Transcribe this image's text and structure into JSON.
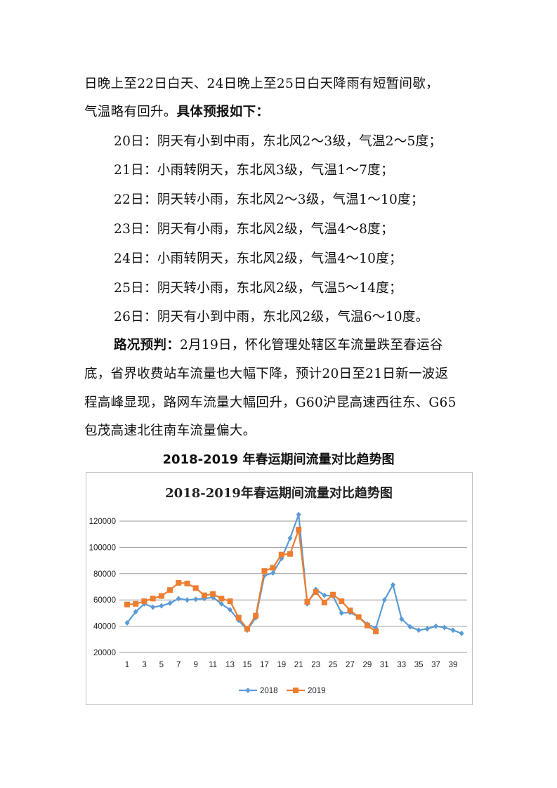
{
  "paragraphs": [
    {
      "parts": [
        {
          "t": "日晚上至22日白天、24日晚上至25日白天降雨有短暂间歇，"
        }
      ]
    },
    {
      "parts": [
        {
          "t": "气温略有回升。"
        },
        {
          "t": "具体预报如下：",
          "bold": true
        }
      ]
    },
    {
      "parts": [
        {
          "t": "20日：阴天有小到中雨，东北风2～3级，气温2～5度；"
        }
      ]
    },
    {
      "parts": [
        {
          "t": "21日：小雨转阴天，东北风3级，气温1～7度；"
        }
      ]
    },
    {
      "parts": [
        {
          "t": "22日：阴天转小雨，东北风2～3级，气温1～10度；"
        }
      ]
    },
    {
      "parts": [
        {
          "t": "23日：阴天有小雨，东北风2级，气温4～8度；"
        }
      ]
    },
    {
      "parts": [
        {
          "t": "24日：小雨转阴天，东北风2级，气温4～10度；"
        }
      ]
    },
    {
      "parts": [
        {
          "t": "25日：阴天转小雨，东北风2级，气温5～14度；"
        }
      ]
    },
    {
      "parts": [
        {
          "t": "26日：阴天有小到中雨，东北风2级，气温6～10度。"
        }
      ]
    },
    {
      "parts": [
        {
          "t": "路况预判：",
          "bold": true
        },
        {
          "t": "2月19日，怀化管理处辖区车流量跌至春运谷"
        }
      ]
    },
    {
      "parts": [
        {
          "t": "底，省界收费站车流量也大幅下降，预计20日至21日新一波返"
        }
      ]
    },
    {
      "parts": [
        {
          "t": "程高峰显现，路网车流量大幅回升，G60沪昆高速西往东、G65"
        }
      ]
    },
    {
      "parts": [
        {
          "t": "包茂高速北往南车流量偏大。"
        }
      ]
    }
  ],
  "figure_caption": "2018-2019 年春运期间流量对比趋势图",
  "chart_data": {
    "type": "line",
    "title": "2018-2019年春运期间流量对比趋势图",
    "ylim": [
      20000,
      120000
    ],
    "yticks": [
      "120000",
      "100000",
      "80000",
      "60000",
      "40000",
      "20000"
    ],
    "xticks": [
      "1",
      "3",
      "5",
      "7",
      "9",
      "11",
      "13",
      "15",
      "17",
      "19",
      "21",
      "23",
      "25",
      "27",
      "29",
      "31",
      "33",
      "35",
      "37",
      "39"
    ],
    "grid": true,
    "legend": "bottom",
    "series": [
      {
        "name": "2018",
        "color": "#5b9bd5",
        "marker": "diamond",
        "x": [
          1,
          2,
          3,
          4,
          5,
          6,
          7,
          8,
          9,
          10,
          11,
          12,
          13,
          14,
          15,
          16,
          17,
          18,
          19,
          20,
          21,
          22,
          23,
          24,
          25,
          26,
          27,
          28,
          29,
          30,
          31,
          32,
          33,
          34,
          35,
          36,
          37,
          38,
          39,
          40
        ],
        "values": [
          42500,
          51000,
          57000,
          54500,
          55500,
          57500,
          61000,
          60000,
          60500,
          61000,
          62000,
          57000,
          52500,
          44500,
          37000,
          46500,
          78500,
          80500,
          91500,
          107000,
          125000,
          57000,
          68000,
          63500,
          63000,
          50000,
          50500,
          47000,
          41500,
          38500,
          60000,
          71500,
          45500,
          39500,
          37000,
          38000,
          40000,
          39000,
          37000,
          34500
        ]
      },
      {
        "name": "2019",
        "color": "#ed7d31",
        "marker": "square",
        "x": [
          1,
          2,
          3,
          4,
          5,
          6,
          7,
          8,
          9,
          10,
          11,
          12,
          13,
          14,
          15,
          16,
          17,
          18,
          19,
          20,
          21,
          22,
          23,
          24,
          25,
          26,
          27,
          28,
          29,
          30
        ],
        "values": [
          56500,
          57000,
          59000,
          61000,
          63000,
          67500,
          73000,
          72500,
          69000,
          63500,
          64500,
          61000,
          59000,
          46500,
          38000,
          48000,
          82000,
          84500,
          94500,
          95000,
          113500,
          58500,
          66000,
          58000,
          64000,
          59000,
          52000,
          47000,
          40500,
          36000
        ]
      }
    ]
  }
}
